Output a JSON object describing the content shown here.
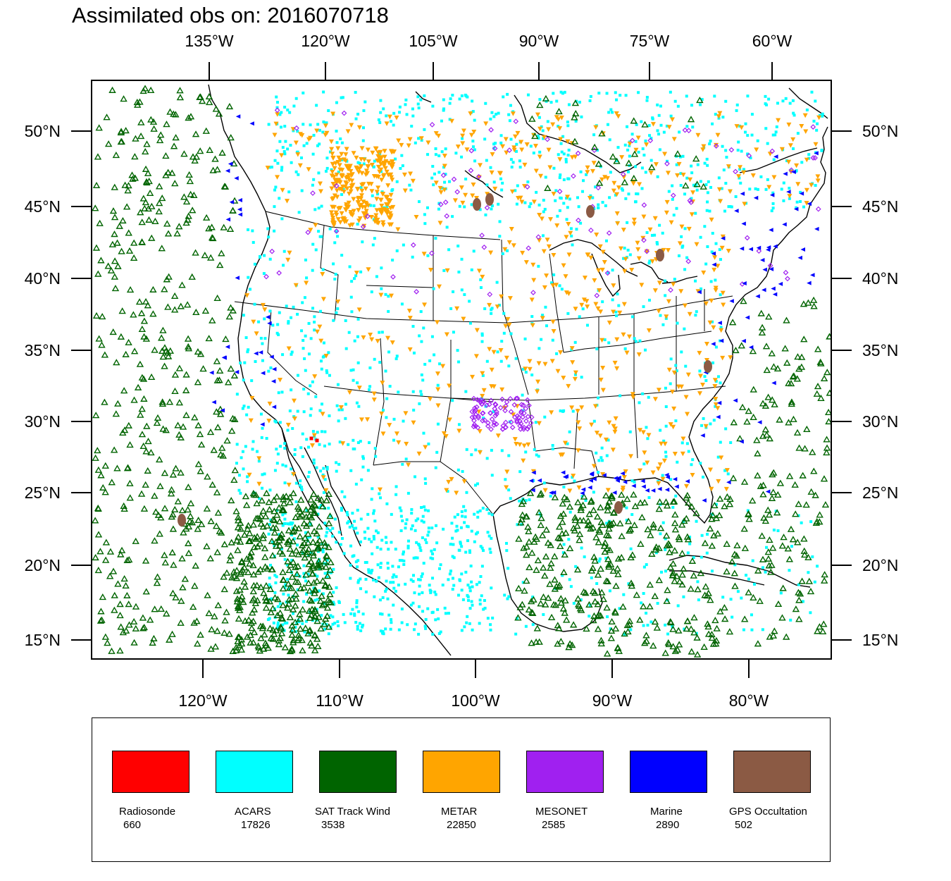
{
  "title": "Assimilated obs on: 2016070718",
  "axes": {
    "top_lon_labels": [
      "135°W",
      "120°W",
      "105°W",
      "90°W",
      "75°W",
      "60°W"
    ],
    "bottom_lon_labels": [
      "120°W",
      "110°W",
      "100°W",
      "90°W",
      "80°W"
    ],
    "lat_labels": [
      "50°N",
      "45°N",
      "40°N",
      "35°N",
      "30°N",
      "25°N",
      "20°N",
      "15°N"
    ]
  },
  "legend": [
    {
      "name": "Radiosonde",
      "count": "660",
      "color": "#ff0000",
      "symbol": "square"
    },
    {
      "name": "ACARS",
      "count": "17826",
      "color": "#00ffff",
      "symbol": "square"
    },
    {
      "name": "SAT Track Wind",
      "count": "3538",
      "color": "#006400",
      "symbol": "triangle-up"
    },
    {
      "name": "METAR",
      "count": "22850",
      "color": "#ffa500",
      "symbol": "triangle-down"
    },
    {
      "name": "MESONET",
      "count": "2585",
      "color": "#a020f0",
      "symbol": "diamond"
    },
    {
      "name": "Marine",
      "count": "2890",
      "color": "#0000ff",
      "symbol": "triangle-left"
    },
    {
      "name": "GPS Occultation",
      "count": "502",
      "color": "#8b5a44",
      "symbol": "square"
    }
  ],
  "icons": {
    "obs_markers": "observation-markers"
  }
}
